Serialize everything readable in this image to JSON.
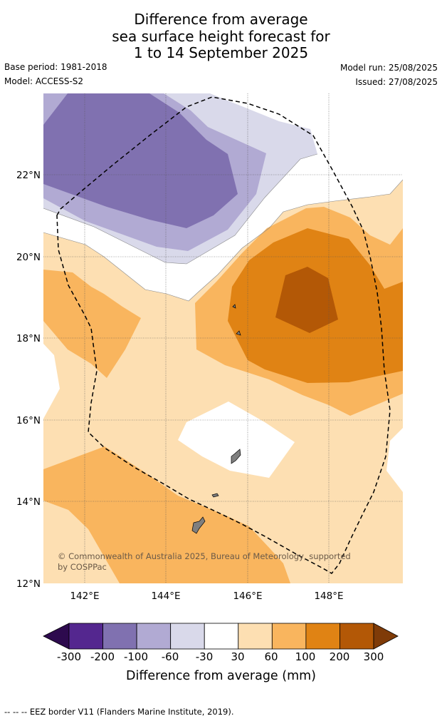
{
  "title": {
    "line1": "Difference from average",
    "line2": "sea surface height forecast for",
    "line3": "1 to 14 September 2025"
  },
  "meta": {
    "base_period": "Base period: 1981-2018",
    "model": "Model: ACCESS-S2",
    "model_run": "Model run: 25/08/2025",
    "issued": "Issued: 27/08/2025"
  },
  "map": {
    "lat_labels": [
      "22°N",
      "20°N",
      "18°N",
      "16°N",
      "14°N",
      "12°N"
    ],
    "lon_labels": [
      "142°E",
      "144°E",
      "146°E",
      "148°E"
    ],
    "copyright": "© Commonwealth of Australia 2025, Bureau of Meteorology, supported",
    "copyright_line2": "by COSPPac",
    "border_style": "dashed"
  },
  "colorbar": {
    "labels": [
      "-300",
      "-200",
      "-100",
      "-60",
      "-30",
      "30",
      "60",
      "100",
      "200",
      "300"
    ],
    "colors": [
      "#2d0a4e",
      "#54278f",
      "#8071b0",
      "#b1aad3",
      "#d9d9ea",
      "#ffffff",
      "#fddfb2",
      "#f9b55e",
      "#e08314",
      "#b35806",
      "#7f3b08"
    ],
    "title": "Difference from average (mm)"
  },
  "footer": {
    "legend": "--  --  -- EEZ border V11 (Flanders Marine Institute, 2019)."
  }
}
